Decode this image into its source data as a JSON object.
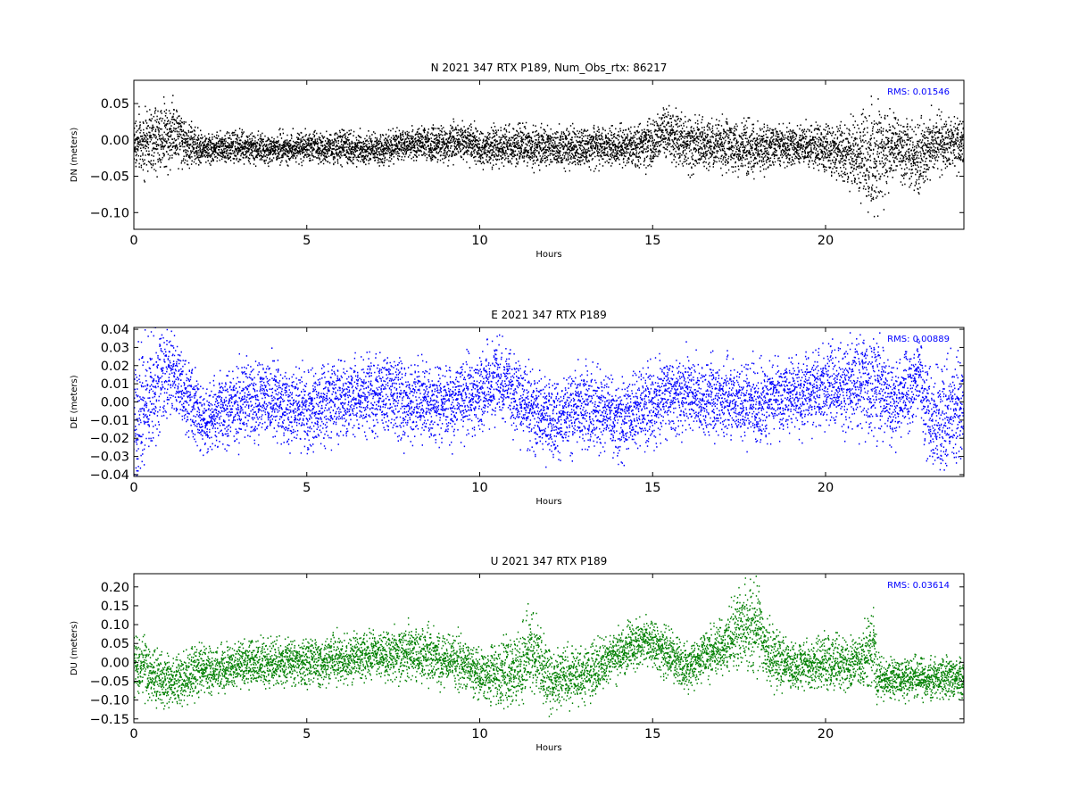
{
  "chart_data": [
    {
      "type": "scatter",
      "title": "N 2021 347 RTX  P189, Num_Obs_rtx: 86217",
      "xlabel": "Hours",
      "ylabel": "DN (meters)",
      "xlim": [
        0,
        24
      ],
      "ylim": [
        -0.123,
        0.082
      ],
      "xticks": [
        0,
        5,
        10,
        15,
        20
      ],
      "xtick_labels": [
        "0",
        "5",
        "10",
        "15",
        "20"
      ],
      "yticks": [
        0.05,
        0.0,
        -0.05,
        -0.1
      ],
      "ytick_labels": [
        "0.05",
        "0.00",
        "−0.05",
        "−0.10"
      ],
      "color": "#000000",
      "annotation": "RMS:  0.01546",
      "annotation_color": "#0000ff",
      "grid": false,
      "x": [
        0,
        0.5,
        1,
        1.2,
        1.5,
        2,
        3,
        4,
        5,
        6,
        7,
        8,
        9,
        9.5,
        10,
        11,
        12,
        13,
        14,
        15,
        15.3,
        16,
        17,
        18,
        19,
        20,
        21,
        21.4,
        22,
        22.7,
        23,
        24
      ],
      "y": [
        -0.005,
        0.0,
        0.01,
        0.015,
        -0.005,
        -0.01,
        -0.01,
        -0.012,
        -0.008,
        -0.01,
        -0.012,
        -0.005,
        -0.005,
        0.0,
        -0.01,
        -0.005,
        -0.01,
        -0.01,
        -0.008,
        -0.005,
        0.01,
        -0.005,
        -0.005,
        -0.01,
        -0.005,
        -0.01,
        -0.02,
        -0.03,
        -0.005,
        -0.025,
        -0.005,
        -0.005
      ],
      "spread": [
        0.02,
        0.025,
        0.028,
        0.025,
        0.018,
        0.012,
        0.012,
        0.012,
        0.012,
        0.012,
        0.012,
        0.012,
        0.015,
        0.015,
        0.015,
        0.015,
        0.015,
        0.015,
        0.015,
        0.018,
        0.02,
        0.02,
        0.02,
        0.02,
        0.015,
        0.018,
        0.03,
        0.045,
        0.02,
        0.03,
        0.022,
        0.02
      ]
    },
    {
      "type": "scatter",
      "title": "E 2021 347 RTX  P189",
      "xlabel": "Hours",
      "ylabel": "DE (meters)",
      "xlim": [
        0,
        24
      ],
      "ylim": [
        -0.041,
        0.041
      ],
      "xticks": [
        0,
        5,
        10,
        15,
        20
      ],
      "xtick_labels": [
        "0",
        "5",
        "10",
        "15",
        "20"
      ],
      "yticks": [
        0.04,
        0.03,
        0.02,
        0.01,
        0.0,
        -0.01,
        -0.02,
        -0.03,
        -0.04
      ],
      "ytick_labels": [
        "0.04",
        "0.03",
        "0.02",
        "0.01",
        "0.00",
        "−0.01",
        "−0.02",
        "−0.03",
        "−0.04"
      ],
      "color": "#0000ff",
      "annotation": "RMS:  0.00889",
      "annotation_color": "#0000ff",
      "grid": false,
      "x": [
        0,
        0.3,
        1,
        1.3,
        2,
        3,
        4,
        5,
        6,
        7,
        8,
        9,
        10,
        10.5,
        11,
        12,
        13,
        14,
        15,
        16,
        17,
        18,
        19,
        20,
        21,
        21.5,
        22,
        22.7,
        23,
        24
      ],
      "y": [
        -0.01,
        -0.005,
        0.02,
        0.01,
        -0.01,
        0.0,
        0.002,
        -0.005,
        0.003,
        0.005,
        0.0,
        0.0,
        0.005,
        0.015,
        0.005,
        -0.012,
        0.0,
        -0.01,
        0.0,
        0.005,
        0.002,
        0.0,
        0.005,
        0.008,
        0.01,
        0.008,
        0.0,
        0.015,
        -0.01,
        -0.005
      ],
      "spread": [
        0.025,
        0.02,
        0.015,
        0.012,
        0.01,
        0.012,
        0.012,
        0.012,
        0.012,
        0.012,
        0.012,
        0.012,
        0.012,
        0.012,
        0.012,
        0.012,
        0.012,
        0.012,
        0.012,
        0.012,
        0.012,
        0.012,
        0.012,
        0.012,
        0.015,
        0.015,
        0.012,
        0.012,
        0.015,
        0.015
      ]
    },
    {
      "type": "scatter",
      "title": "U 2021 347 RTX  P189",
      "xlabel": "Hours",
      "ylabel": "DU (meters)",
      "xlim": [
        0,
        24
      ],
      "ylim": [
        -0.16,
        0.235
      ],
      "xticks": [
        0,
        5,
        10,
        15,
        20
      ],
      "xtick_labels": [
        "0",
        "5",
        "10",
        "15",
        "20"
      ],
      "yticks": [
        0.2,
        0.15,
        0.1,
        0.05,
        0.0,
        -0.05,
        -0.1,
        -0.15
      ],
      "ytick_labels": [
        "0.20",
        "0.15",
        "0.10",
        "0.05",
        "0.00",
        "−0.05",
        "−0.10",
        "−0.15"
      ],
      "color": "#008000",
      "annotation": "RMS:  0.03614",
      "annotation_color": "#0000ff",
      "grid": false,
      "x": [
        0,
        0.5,
        1,
        2,
        3,
        4,
        5,
        6,
        7,
        8,
        9,
        9.5,
        10,
        11,
        11.5,
        12,
        13,
        14,
        14.8,
        15.5,
        16,
        17,
        17.5,
        18,
        18.3,
        19,
        20,
        21,
        21.4,
        21.5,
        22,
        23,
        24
      ],
      "y": [
        0.0,
        -0.03,
        -0.05,
        -0.02,
        -0.01,
        0.0,
        0.0,
        0.01,
        0.02,
        0.03,
        0.01,
        0.0,
        -0.03,
        -0.02,
        0.03,
        -0.04,
        -0.03,
        0.02,
        0.06,
        0.02,
        -0.01,
        0.05,
        0.09,
        0.1,
        0.03,
        -0.01,
        0.0,
        0.0,
        0.05,
        -0.04,
        -0.04,
        -0.04,
        -0.04
      ],
      "spread": [
        0.05,
        0.04,
        0.04,
        0.035,
        0.035,
        0.035,
        0.035,
        0.035,
        0.035,
        0.04,
        0.04,
        0.04,
        0.04,
        0.05,
        0.07,
        0.05,
        0.04,
        0.035,
        0.035,
        0.035,
        0.035,
        0.04,
        0.06,
        0.07,
        0.05,
        0.035,
        0.04,
        0.04,
        0.06,
        0.035,
        0.03,
        0.03,
        0.03
      ]
    }
  ]
}
